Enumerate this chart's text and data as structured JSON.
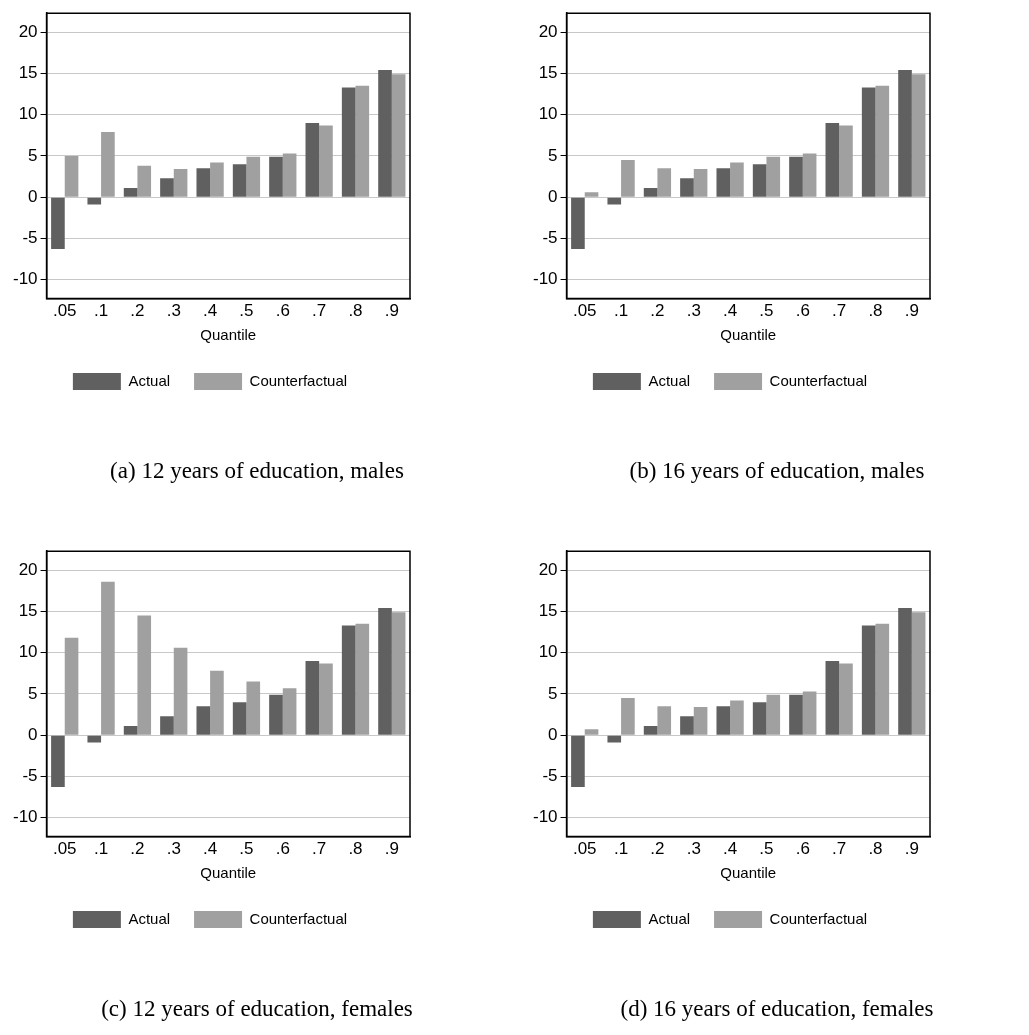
{
  "chart_data": [
    {
      "type": "bar",
      "title": "(a) 12 years of education, males",
      "xlabel": "Quantile",
      "categories": [
        ".05",
        ".1",
        ".2",
        ".3",
        ".4",
        ".5",
        ".6",
        ".7",
        ".8",
        ".9"
      ],
      "series": [
        {
          "name": "Actual",
          "color": "#606060",
          "values": [
            -6.3,
            -0.9,
            1.1,
            2.3,
            3.5,
            4.0,
            4.9,
            9.0,
            13.3,
            15.4
          ]
        },
        {
          "name": "Counterfactual",
          "color": "#a0a0a0",
          "values": [
            5.0,
            7.9,
            3.8,
            3.4,
            4.2,
            4.9,
            5.3,
            8.7,
            13.5,
            14.9
          ]
        }
      ],
      "ylim": [
        -12.3,
        22.3
      ],
      "yticks": [
        -10,
        -5,
        0,
        5,
        10,
        15,
        20
      ],
      "grid": "y",
      "legend": "bottom"
    },
    {
      "type": "bar",
      "title": "(b) 16 years of education, males",
      "xlabel": "Quantile",
      "categories": [
        ".05",
        ".1",
        ".2",
        ".3",
        ".4",
        ".5",
        ".6",
        ".7",
        ".8",
        ".9"
      ],
      "series": [
        {
          "name": "Actual",
          "color": "#606060",
          "values": [
            -6.3,
            -0.9,
            1.1,
            2.3,
            3.5,
            4.0,
            4.9,
            9.0,
            13.3,
            15.4
          ]
        },
        {
          "name": "Counterfactual",
          "color": "#a0a0a0",
          "values": [
            0.6,
            4.5,
            3.5,
            3.4,
            4.2,
            4.9,
            5.3,
            8.7,
            13.5,
            14.9
          ]
        }
      ],
      "ylim": [
        -12.3,
        22.3
      ],
      "yticks": [
        -10,
        -5,
        0,
        5,
        10,
        15,
        20
      ],
      "grid": "y",
      "legend": "bottom"
    },
    {
      "type": "bar",
      "title": "(c) 12 years of education, females",
      "xlabel": "Quantile",
      "categories": [
        ".05",
        ".1",
        ".2",
        ".3",
        ".4",
        ".5",
        ".6",
        ".7",
        ".8",
        ".9"
      ],
      "series": [
        {
          "name": "Actual",
          "color": "#606060",
          "values": [
            -6.3,
            -0.9,
            1.1,
            2.3,
            3.5,
            4.0,
            4.9,
            9.0,
            13.3,
            15.4
          ]
        },
        {
          "name": "Counterfactual",
          "color": "#a0a0a0",
          "values": [
            11.8,
            18.6,
            14.5,
            10.6,
            7.8,
            6.5,
            5.7,
            8.7,
            13.5,
            14.9
          ]
        }
      ],
      "ylim": [
        -12.3,
        22.3
      ],
      "yticks": [
        -10,
        -5,
        0,
        5,
        10,
        15,
        20
      ],
      "grid": "y",
      "legend": "bottom"
    },
    {
      "type": "bar",
      "title": "(d) 16 years of education, females",
      "xlabel": "Quantile",
      "categories": [
        ".05",
        ".1",
        ".2",
        ".3",
        ".4",
        ".5",
        ".6",
        ".7",
        ".8",
        ".9"
      ],
      "series": [
        {
          "name": "Actual",
          "color": "#606060",
          "values": [
            -6.3,
            -0.9,
            1.1,
            2.3,
            3.5,
            4.0,
            4.9,
            9.0,
            13.3,
            15.4
          ]
        },
        {
          "name": "Counterfactual",
          "color": "#a0a0a0",
          "values": [
            0.7,
            4.5,
            3.5,
            3.4,
            4.2,
            4.9,
            5.3,
            8.7,
            13.5,
            14.9
          ]
        }
      ],
      "ylim": [
        -12.3,
        22.3
      ],
      "yticks": [
        -10,
        -5,
        0,
        5,
        10,
        15,
        20
      ],
      "grid": "y",
      "legend": "bottom"
    }
  ]
}
